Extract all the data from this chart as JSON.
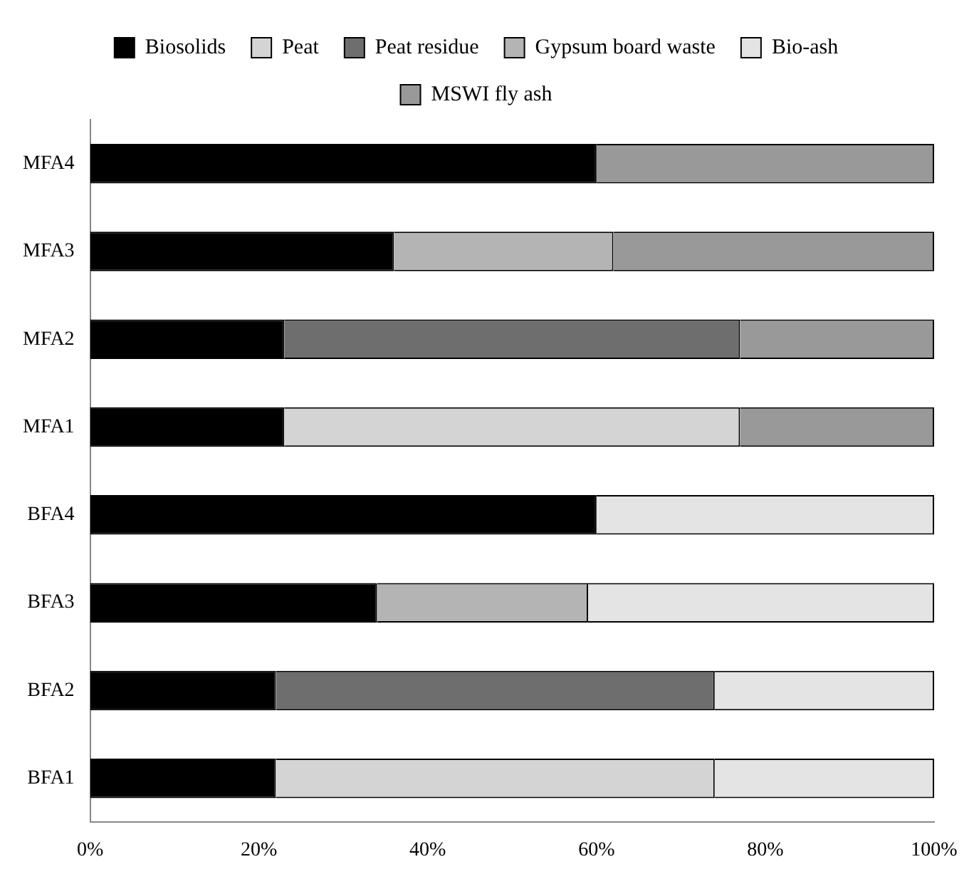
{
  "chart_data": {
    "type": "bar",
    "orientation": "horizontal",
    "stacked": true,
    "categories": [
      "MFA4",
      "MFA3",
      "MFA2",
      "MFA1",
      "BFA4",
      "BFA3",
      "BFA2",
      "BFA1"
    ],
    "series": [
      {
        "name": "Biosolids",
        "color": "#000000",
        "values": [
          60,
          36,
          23,
          23,
          60,
          34,
          22,
          22
        ]
      },
      {
        "name": "Peat",
        "color": "#d4d4d4",
        "values": [
          null,
          null,
          null,
          54,
          null,
          null,
          null,
          52
        ]
      },
      {
        "name": "Peat residue",
        "color": "#6e6e6e",
        "values": [
          null,
          null,
          54,
          null,
          null,
          null,
          52,
          null
        ]
      },
      {
        "name": "Gypsum board waste",
        "color": "#b4b4b4",
        "values": [
          null,
          26,
          null,
          null,
          null,
          25,
          null,
          null
        ]
      },
      {
        "name": "Bio-ash",
        "color": "#e4e4e4",
        "values": [
          null,
          null,
          null,
          null,
          40,
          41,
          26,
          26
        ]
      },
      {
        "name": "MSWI fly ash",
        "color": "#999999",
        "values": [
          40,
          38,
          23,
          23,
          null,
          null,
          null,
          null
        ]
      }
    ],
    "xlim": [
      0,
      100
    ],
    "xticks": [
      {
        "value": 0,
        "label": "0%"
      },
      {
        "value": 20,
        "label": "20%"
      },
      {
        "value": 40,
        "label": "40%"
      },
      {
        "value": 60,
        "label": "60%"
      },
      {
        "value": 80,
        "label": "80%"
      },
      {
        "value": 100,
        "label": "100%"
      }
    ],
    "grid": false,
    "legend": "top"
  }
}
